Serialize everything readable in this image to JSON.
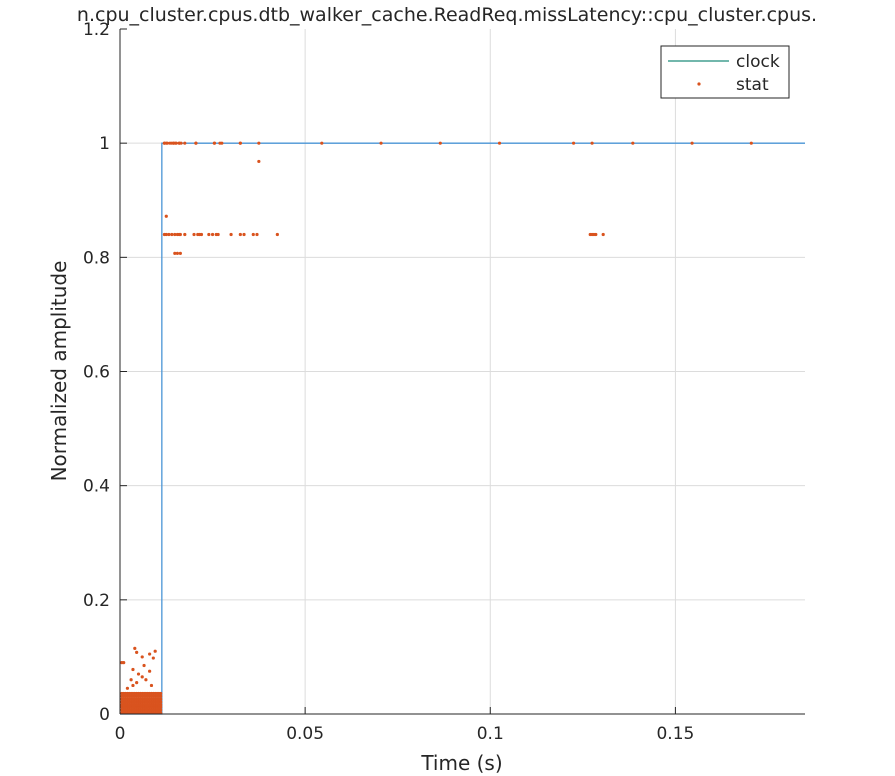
{
  "chart_data": {
    "type": "line",
    "title": "n.cpu_cluster.cpus.dtb_walker_cache.ReadReq.missLatency::cpu_cluster.cpus.",
    "xlabel": "Time (s)",
    "ylabel": "Normalized amplitude",
    "xlim": [
      0,
      0.185
    ],
    "ylim": [
      0,
      1.2
    ],
    "xticks": [
      0,
      0.05,
      0.1,
      0.15
    ],
    "xtick_labels": [
      "0",
      "0.05",
      "0.1",
      "0.15"
    ],
    "yticks": [
      0,
      0.2,
      0.4,
      0.6,
      0.8,
      1,
      1.2
    ],
    "ytick_labels": [
      "0",
      "0.2",
      "0.4",
      "0.6",
      "0.8",
      "1",
      "1.2"
    ],
    "grid": true,
    "legend_position": "top-right",
    "colors": {
      "clock": "#4a95d6",
      "clock_legend": "#1f8c7a",
      "stat": "#d9531e",
      "grid": "#dcdcdc",
      "axis": "#262626"
    },
    "series": [
      {
        "name": "clock",
        "style": "line",
        "x": [
          0,
          0.0113,
          0.0113,
          0.185
        ],
        "y": [
          0,
          0,
          1,
          1
        ]
      },
      {
        "name": "stat",
        "style": "scatter",
        "x": [
          0.0005,
          0.001,
          0.0015,
          0.002,
          0.0025,
          0.003,
          0.0035,
          0.004,
          0.0045,
          0.005,
          0.0055,
          0.006,
          0.0065,
          0.007,
          0.0075,
          0.008,
          0.0085,
          0.009,
          0.0095,
          0.01,
          0.0105,
          0.011,
          0.0005,
          0.001,
          0.0015,
          0.002,
          0.0025,
          0.003,
          0.0035,
          0.004,
          0.0045,
          0.005,
          0.0055,
          0.006,
          0.0065,
          0.007,
          0.0075,
          0.008,
          0.0085,
          0.009,
          0.0095,
          0.01,
          0.0105,
          0.011,
          0.0005,
          0.001,
          0.0015,
          0.002,
          0.0025,
          0.003,
          0.0035,
          0.004,
          0.0045,
          0.005,
          0.0055,
          0.006,
          0.0065,
          0.007,
          0.0075,
          0.008,
          0.0085,
          0.009,
          0.0095,
          0.01,
          0.0105,
          0.011,
          0.0005,
          0.001,
          0.0015,
          0.002,
          0.0025,
          0.003,
          0.0035,
          0.004,
          0.0045,
          0.005,
          0.0055,
          0.006,
          0.0065,
          0.007,
          0.0075,
          0.008,
          0.0085,
          0.009,
          0.0095,
          0.01,
          0.0105,
          0.011,
          0.0005,
          0.001,
          0.0015,
          0.002,
          0.0025,
          0.003,
          0.0035,
          0.004,
          0.0045,
          0.005,
          0.0055,
          0.006,
          0.0065,
          0.007,
          0.0075,
          0.008,
          0.0085,
          0.009,
          0.0095,
          0.01,
          0.0105,
          0.011,
          0.0005,
          0.001,
          0.0015,
          0.002,
          0.0025,
          0.003,
          0.0035,
          0.004,
          0.0045,
          0.005,
          0.0055,
          0.006,
          0.0065,
          0.007,
          0.0075,
          0.008,
          0.0085,
          0.009,
          0.0095,
          0.01,
          0.0105,
          0.011,
          0.0005,
          0.001,
          0.0015,
          0.002,
          0.0025,
          0.003,
          0.0035,
          0.004,
          0.0045,
          0.005,
          0.0055,
          0.006,
          0.0065,
          0.007,
          0.0075,
          0.008,
          0.0085,
          0.009,
          0.0095,
          0.01,
          0.0105,
          0.011,
          0.0005,
          0.001,
          0.0015,
          0.002,
          0.0025,
          0.003,
          0.0035,
          0.004,
          0.0045,
          0.005,
          0.0055,
          0.006,
          0.0065,
          0.007,
          0.0075,
          0.008,
          0.0085,
          0.009,
          0.0095,
          0.01,
          0.0105,
          0.011,
          0.0005,
          0.001,
          0.002,
          0.003,
          0.0035,
          0.004,
          0.0045,
          0.005,
          0.006,
          0.0065,
          0.007,
          0.008,
          0.009,
          0.0095,
          0.0035,
          0.0045,
          0.006,
          0.008,
          0.0085,
          0.012,
          0.0125,
          0.0135,
          0.014,
          0.0145,
          0.015,
          0.016,
          0.0165,
          0.0175,
          0.0205,
          0.0255,
          0.027,
          0.0325,
          0.0375,
          0.012,
          0.0125,
          0.0132,
          0.014,
          0.0148,
          0.0155,
          0.016,
          0.0163,
          0.0175,
          0.02,
          0.021,
          0.0215,
          0.022,
          0.024,
          0.025,
          0.026,
          0.0265,
          0.03,
          0.0325,
          0.0335,
          0.036,
          0.037,
          0.0425,
          0.127,
          0.1275,
          0.128,
          0.1285,
          0.1305,
          0.0148,
          0.0155,
          0.0163,
          0.0125,
          0.0375,
          0.012,
          0.0128,
          0.0145,
          0.0152,
          0.016,
          0.0205,
          0.0255,
          0.0275,
          0.0325,
          0.0545,
          0.0705,
          0.0865,
          0.1025,
          0.1225,
          0.1275,
          0.1385,
          0.1545,
          0.1705
        ],
        "y": [
          0.002,
          0.002,
          0.002,
          0.002,
          0.002,
          0.002,
          0.002,
          0.002,
          0.002,
          0.002,
          0.002,
          0.002,
          0.002,
          0.002,
          0.002,
          0.002,
          0.002,
          0.002,
          0.002,
          0.002,
          0.002,
          0.002,
          0.007,
          0.007,
          0.007,
          0.007,
          0.007,
          0.007,
          0.007,
          0.007,
          0.007,
          0.007,
          0.007,
          0.007,
          0.007,
          0.007,
          0.007,
          0.007,
          0.007,
          0.007,
          0.007,
          0.007,
          0.007,
          0.007,
          0.012,
          0.012,
          0.012,
          0.012,
          0.012,
          0.012,
          0.012,
          0.012,
          0.012,
          0.012,
          0.012,
          0.012,
          0.012,
          0.012,
          0.012,
          0.012,
          0.012,
          0.012,
          0.012,
          0.012,
          0.012,
          0.012,
          0.016,
          0.016,
          0.016,
          0.016,
          0.016,
          0.016,
          0.016,
          0.016,
          0.016,
          0.016,
          0.016,
          0.016,
          0.016,
          0.016,
          0.016,
          0.016,
          0.016,
          0.016,
          0.016,
          0.016,
          0.016,
          0.016,
          0.021,
          0.021,
          0.021,
          0.021,
          0.021,
          0.021,
          0.021,
          0.021,
          0.021,
          0.021,
          0.021,
          0.021,
          0.021,
          0.021,
          0.021,
          0.021,
          0.021,
          0.021,
          0.021,
          0.021,
          0.021,
          0.021,
          0.026,
          0.026,
          0.026,
          0.026,
          0.026,
          0.026,
          0.026,
          0.026,
          0.026,
          0.026,
          0.026,
          0.026,
          0.026,
          0.026,
          0.026,
          0.026,
          0.026,
          0.026,
          0.026,
          0.026,
          0.026,
          0.026,
          0.031,
          0.031,
          0.031,
          0.031,
          0.031,
          0.031,
          0.031,
          0.031,
          0.031,
          0.031,
          0.031,
          0.031,
          0.031,
          0.031,
          0.031,
          0.031,
          0.031,
          0.031,
          0.031,
          0.031,
          0.031,
          0.031,
          0.036,
          0.036,
          0.036,
          0.036,
          0.036,
          0.036,
          0.036,
          0.036,
          0.036,
          0.036,
          0.036,
          0.036,
          0.036,
          0.036,
          0.036,
          0.036,
          0.036,
          0.036,
          0.036,
          0.036,
          0.036,
          0.036,
          0.09,
          0.09,
          0.045,
          0.06,
          0.05,
          0.115,
          0.108,
          0.07,
          0.1,
          0.085,
          0.06,
          0.105,
          0.098,
          0.11,
          0.078,
          0.055,
          0.065,
          0.075,
          0.05,
          1.0,
          1.0,
          1.0,
          1.0,
          1.0,
          1.0,
          1.0,
          1.0,
          1.0,
          1.0,
          1.0,
          1.0,
          1.0,
          1.0,
          0.84,
          0.84,
          0.84,
          0.84,
          0.84,
          0.84,
          0.84,
          0.84,
          0.84,
          0.84,
          0.84,
          0.84,
          0.84,
          0.84,
          0.84,
          0.84,
          0.84,
          0.84,
          0.84,
          0.84,
          0.84,
          0.84,
          0.84,
          0.84,
          0.84,
          0.84,
          0.84,
          0.84,
          0.807,
          0.807,
          0.807,
          0.872,
          0.968,
          1.0,
          1.0,
          1.0,
          1.0,
          1.0,
          1.0,
          1.0,
          1.0,
          1.0,
          1.0,
          1.0,
          1.0,
          1.0,
          1.0,
          1.0,
          1.0,
          1.0,
          1.0
        ]
      }
    ]
  }
}
